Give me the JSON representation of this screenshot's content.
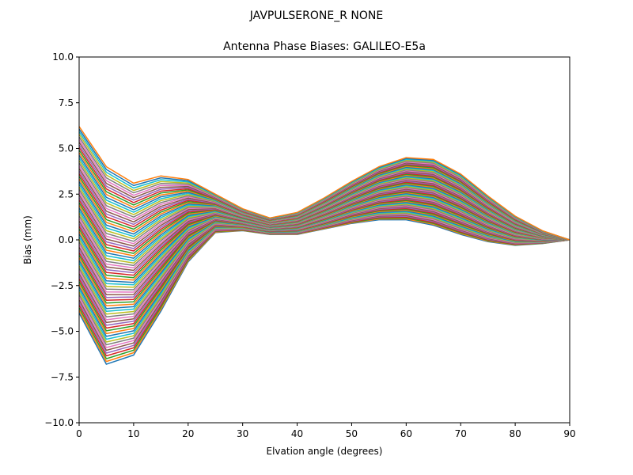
{
  "chart_data": {
    "type": "line",
    "suptitle": "JAVPULSERONE_R  NONE",
    "title": "Antenna Phase Biases: GALILEO-E5a",
    "xlabel": "Elvation angle (degrees)",
    "ylabel": "Bias (mm)",
    "xlim": [
      0,
      90
    ],
    "ylim": [
      -10,
      10
    ],
    "x_ticks": [
      "0",
      "10",
      "20",
      "30",
      "40",
      "50",
      "60",
      "70",
      "80",
      "90"
    ],
    "y_ticks": [
      "10.0",
      "7.5",
      "5.0",
      "2.5",
      "0.0",
      "−2.5",
      "−5.0",
      "−7.5",
      "−10.0"
    ],
    "grid": false,
    "legend": "none",
    "x": [
      0,
      5,
      10,
      15,
      20,
      25,
      30,
      35,
      40,
      45,
      50,
      55,
      60,
      65,
      70,
      75,
      80,
      85,
      90
    ],
    "series_profile_low": [
      -4.0,
      -6.8,
      -6.3,
      -3.9,
      -1.2,
      0.4,
      0.5,
      0.3,
      0.3,
      0.6,
      0.9,
      1.1,
      1.1,
      0.8,
      0.3,
      -0.1,
      -0.3,
      -0.2,
      0.0
    ],
    "series_profile_high": [
      6.2,
      4.0,
      3.1,
      3.5,
      3.3,
      2.5,
      1.7,
      1.2,
      1.5,
      2.3,
      3.2,
      4.0,
      4.5,
      4.4,
      3.6,
      2.4,
      1.3,
      0.5,
      0.0
    ],
    "series_count": 72,
    "colors": [
      "#1f77b4",
      "#ff7f0e",
      "#2ca02c",
      "#d62728",
      "#9467bd",
      "#8c564b",
      "#e377c2",
      "#7f7f7f",
      "#bcbd22",
      "#17becf"
    ]
  }
}
